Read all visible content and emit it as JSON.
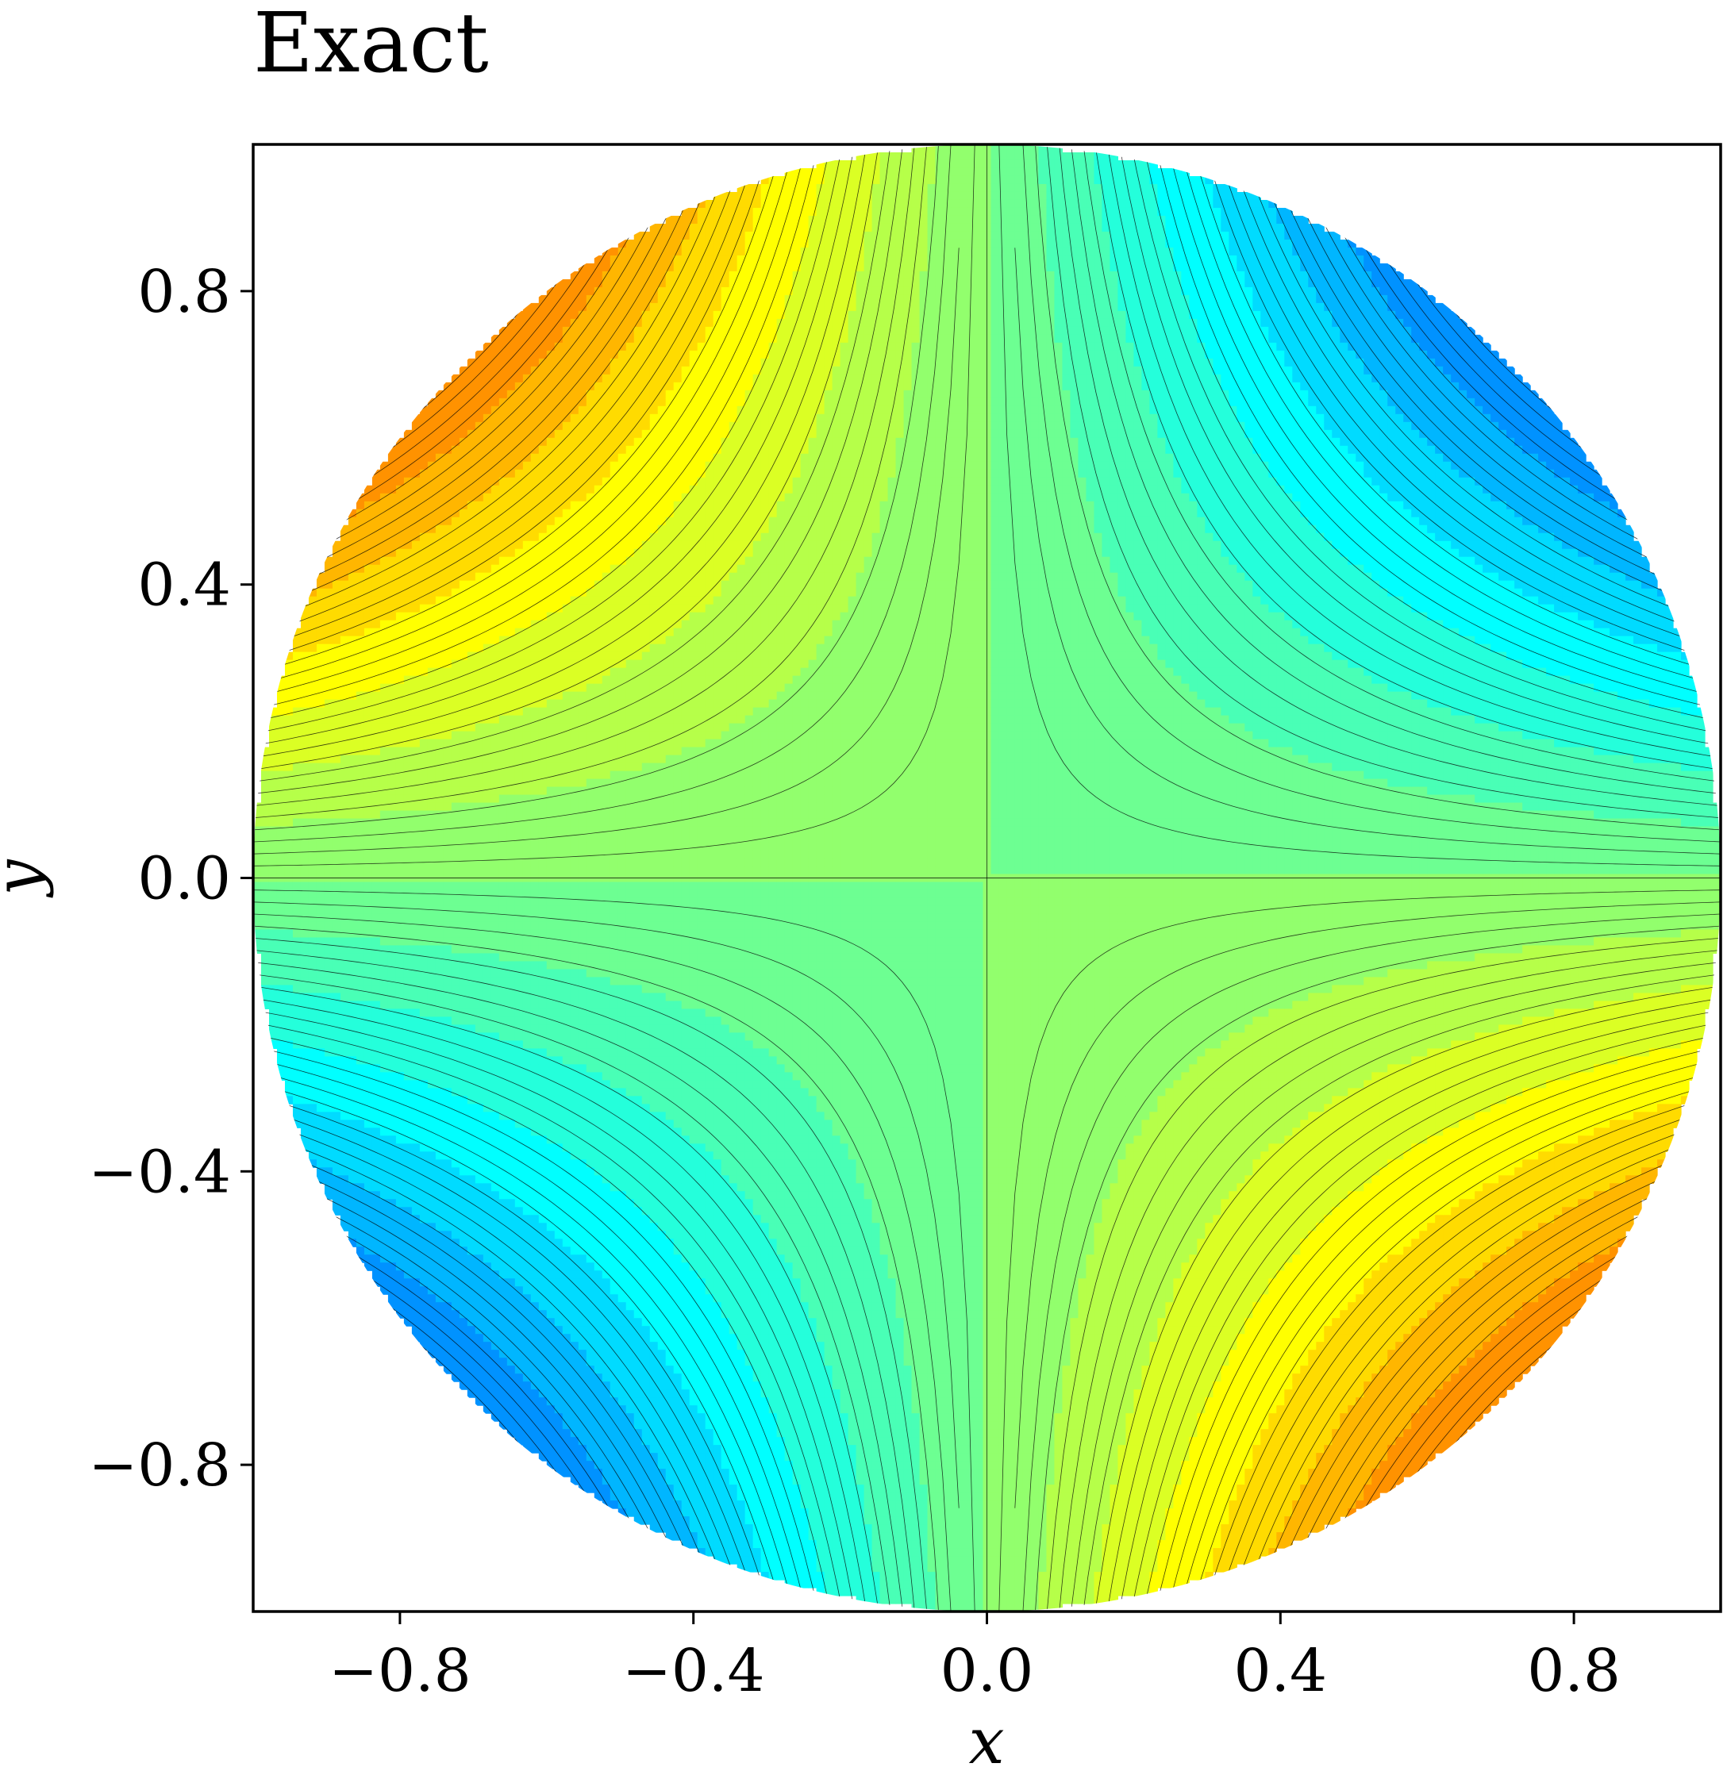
{
  "chart_data": {
    "type": "heatmap",
    "subtype": "filled-contour",
    "title": "Exact",
    "xlabel": "x",
    "ylabel": "y",
    "xlim": [
      -1,
      1
    ],
    "ylim": [
      -1,
      1
    ],
    "domain": "unit disk",
    "colormap": "jet",
    "function": "u = -x*y",
    "value_range": [
      -0.5,
      0.5
    ],
    "fill_levels": 14,
    "contour_lines": 60,
    "contour_line_color": "#000000",
    "x_ticks": [
      -0.8,
      -0.4,
      0.0,
      0.4,
      0.8
    ],
    "y_ticks": [
      -0.8,
      -0.4,
      0.0,
      0.4,
      0.8
    ],
    "x_tick_labels": [
      "−0.8",
      "−0.4",
      "0.0",
      "0.4",
      "0.8"
    ],
    "y_tick_labels": [
      "−0.8",
      "−0.4",
      "0.0",
      "0.4",
      "0.8"
    ],
    "extremes": {
      "max": {
        "location": "upper-left / lower-right",
        "color": "#ff4a00"
      },
      "min": {
        "location": "upper-right / lower-left",
        "color": "#2cffca"
      }
    },
    "grid": false,
    "legend": "none"
  }
}
